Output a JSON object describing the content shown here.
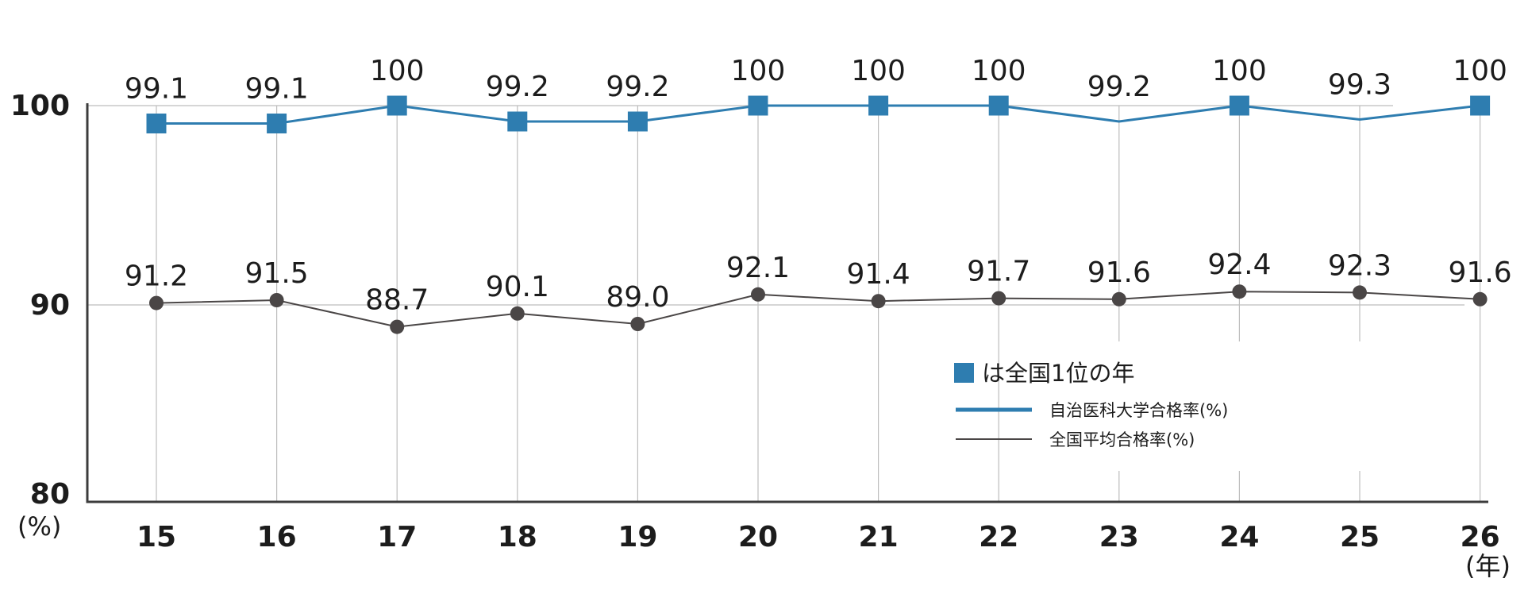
{
  "chart_data": {
    "type": "line",
    "categories": [
      "15",
      "16",
      "17",
      "18",
      "19",
      "20",
      "21",
      "22",
      "23",
      "24",
      "25",
      "26"
    ],
    "series": [
      {
        "name": "自治医科大学合格率(%)",
        "values": [
          99.1,
          99.1,
          100,
          99.2,
          99.2,
          100,
          100,
          100,
          99.2,
          100,
          99.3,
          100
        ],
        "labels": [
          "99.1",
          "99.1",
          "100",
          "99.2",
          "99.2",
          "100",
          "100",
          "100",
          "99.2",
          "100",
          "99.3",
          "100"
        ],
        "marked": [
          true,
          true,
          true,
          true,
          true,
          true,
          true,
          true,
          false,
          true,
          false,
          true
        ],
        "color": "#2e7db0",
        "marker": "square"
      },
      {
        "name": "全国平均合格率(%)",
        "values": [
          91.2,
          91.5,
          88.7,
          90.1,
          89.0,
          92.1,
          91.4,
          91.7,
          91.6,
          92.4,
          92.3,
          91.6
        ],
        "labels": [
          "91.2",
          "91.5",
          "88.7",
          "90.1",
          "89.0",
          "92.1",
          "91.4",
          "91.7",
          "91.6",
          "92.4",
          "92.3",
          "91.6"
        ],
        "color": "#4a4646",
        "marker": "circle"
      }
    ],
    "yticks": [
      "100",
      "90",
      "80"
    ],
    "ylabel": "(%)",
    "xlabel": "(年)",
    "grid": true,
    "legend_position": "bottom-right",
    "legend_marker_note": "は全国1位の年"
  }
}
